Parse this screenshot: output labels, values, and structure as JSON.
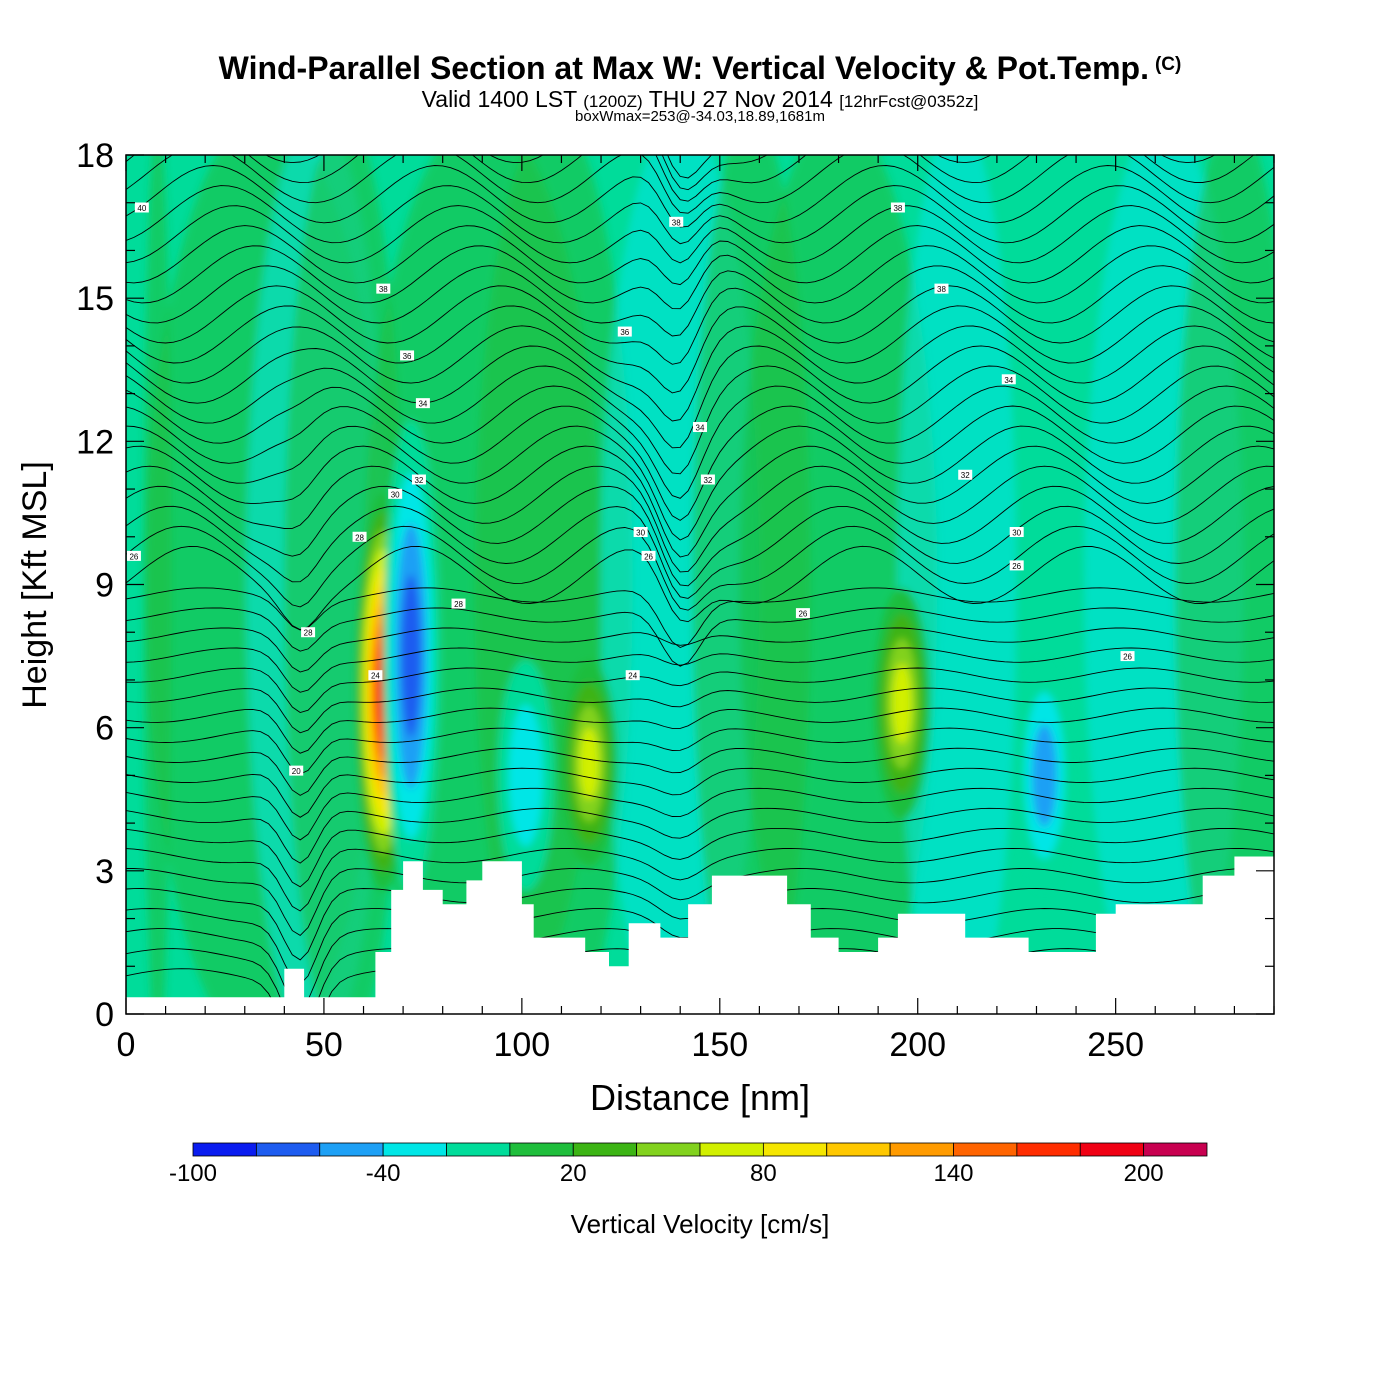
{
  "title": "Wind-Parallel Section at Max W: Vertical Velocity & Pot.Temp.",
  "title_mark": "(C)",
  "subtitle": {
    "part1": "Valid 1400 LST",
    "part2": "(1200Z)",
    "part3": "THU 27 Nov 2014",
    "part4": "[12hrFcst@0352z]"
  },
  "info": "boxWmax=253@-34.03,18.89,1681m",
  "chart_data": {
    "type": "heatmap",
    "xlabel": "Distance [nm]",
    "ylabel": "Height [Kft MSL]",
    "xlim": [
      0,
      290
    ],
    "ylim": [
      0,
      18
    ],
    "xticks": [
      0,
      50,
      100,
      150,
      200,
      250
    ],
    "yticks": [
      0,
      3,
      6,
      9,
      12,
      15,
      18
    ],
    "colorbar": {
      "label": "Vertical Velocity [cm/s]",
      "boundaries": [
        -100,
        -80,
        -60,
        -40,
        -20,
        0,
        20,
        40,
        60,
        80,
        100,
        120,
        140,
        160,
        180,
        200,
        220
      ],
      "tick_labels": [
        "-100",
        "-40",
        "20",
        "80",
        "140",
        "200"
      ],
      "colors": [
        "#0a1cf0",
        "#1e5cf0",
        "#1ea0f5",
        "#00e6e6",
        "#00dc9a",
        "#1fbe3c",
        "#3cb414",
        "#82d21e",
        "#d2f000",
        "#f5e600",
        "#ffc800",
        "#ff9b00",
        "#ff6400",
        "#ff2d00",
        "#f00014",
        "#c80050"
      ]
    },
    "updraft_cores": [
      {
        "x": 65,
        "y_bottom": 3,
        "y_top": 10.5,
        "max": 200
      },
      {
        "x": 117,
        "y_bottom": 3.5,
        "y_top": 7,
        "max": 80
      },
      {
        "x": 196,
        "y_bottom": 4.5,
        "y_top": 8.5,
        "max": 80
      }
    ],
    "downdraft_cores": [
      {
        "x": 72,
        "y_bottom": 3,
        "y_top": 12,
        "min": -80
      },
      {
        "x": 101,
        "y_bottom": 3,
        "y_top": 7,
        "min": -40
      },
      {
        "x": 232,
        "y_bottom": 3,
        "y_top": 7,
        "min": -60
      }
    ],
    "terrain": [
      [
        0,
        0.35
      ],
      [
        37,
        0.35
      ],
      [
        40,
        0.95
      ],
      [
        45,
        0.35
      ],
      [
        60,
        0.35
      ],
      [
        63,
        1.3
      ],
      [
        67,
        2.6
      ],
      [
        70,
        3.2
      ],
      [
        75,
        2.6
      ],
      [
        80,
        2.3
      ],
      [
        86,
        2.8
      ],
      [
        90,
        3.2
      ],
      [
        96,
        3.2
      ],
      [
        100,
        2.3
      ],
      [
        103,
        1.6
      ],
      [
        112,
        1.6
      ],
      [
        116,
        1.3
      ],
      [
        122,
        1.0
      ],
      [
        127,
        1.9
      ],
      [
        135,
        1.6
      ],
      [
        142,
        2.3
      ],
      [
        148,
        2.9
      ],
      [
        160,
        2.9
      ],
      [
        167,
        2.3
      ],
      [
        173,
        1.6
      ],
      [
        180,
        1.3
      ],
      [
        190,
        1.6
      ],
      [
        195,
        2.1
      ],
      [
        205,
        2.1
      ],
      [
        212,
        1.6
      ],
      [
        220,
        1.6
      ],
      [
        228,
        1.3
      ],
      [
        240,
        1.3
      ],
      [
        245,
        2.1
      ],
      [
        250,
        2.3
      ],
      [
        265,
        2.3
      ],
      [
        272,
        2.9
      ],
      [
        280,
        3.3
      ],
      [
        290,
        3.6
      ]
    ],
    "theta_contour_labels": [
      {
        "x": 4,
        "y": 16.9,
        "text": "40"
      },
      {
        "x": 65,
        "y": 15.2,
        "text": "38"
      },
      {
        "x": 71,
        "y": 13.8,
        "text": "36"
      },
      {
        "x": 75,
        "y": 12.8,
        "text": "34"
      },
      {
        "x": 74,
        "y": 11.2,
        "text": "32"
      },
      {
        "x": 68,
        "y": 10.9,
        "text": "30"
      },
      {
        "x": 59,
        "y": 10.0,
        "text": "28"
      },
      {
        "x": 2,
        "y": 9.6,
        "text": "26"
      },
      {
        "x": 46,
        "y": 8.0,
        "text": "28"
      },
      {
        "x": 63,
        "y": 7.1,
        "text": "24"
      },
      {
        "x": 43,
        "y": 5.1,
        "text": "20"
      },
      {
        "x": 84,
        "y": 8.6,
        "text": "28"
      },
      {
        "x": 130,
        "y": 10.1,
        "text": "30"
      },
      {
        "x": 132,
        "y": 9.6,
        "text": "26"
      },
      {
        "x": 126,
        "y": 14.3,
        "text": "36"
      },
      {
        "x": 139,
        "y": 16.6,
        "text": "38"
      },
      {
        "x": 145,
        "y": 12.3,
        "text": "34"
      },
      {
        "x": 147,
        "y": 11.2,
        "text": "32"
      },
      {
        "x": 128,
        "y": 7.1,
        "text": "24"
      },
      {
        "x": 171,
        "y": 8.4,
        "text": "26"
      },
      {
        "x": 195,
        "y": 16.9,
        "text": "38"
      },
      {
        "x": 206,
        "y": 15.2,
        "text": "38"
      },
      {
        "x": 223,
        "y": 13.3,
        "text": "34"
      },
      {
        "x": 212,
        "y": 11.3,
        "text": "32"
      },
      {
        "x": 225,
        "y": 10.1,
        "text": "30"
      },
      {
        "x": 225,
        "y": 9.4,
        "text": "26"
      },
      {
        "x": 253,
        "y": 7.5,
        "text": "26"
      }
    ]
  }
}
